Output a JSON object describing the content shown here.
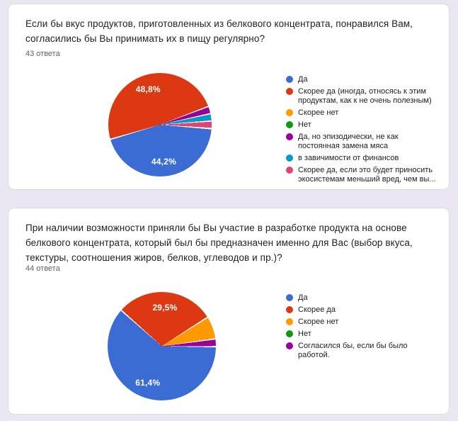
{
  "page": {
    "background_color": "#EAE6F2",
    "card_color": "#FFFFFF"
  },
  "cards": [
    {
      "question": "Если бы вкус продуктов, приготовленных из белкового концентрата, понравился Вам,\nсогласились бы Вы принимать их в пищу регулярно?",
      "answers_count": "43 ответа"
    },
    {
      "question": "При наличии возможности приняли бы Вы участие в разработке продукта на основе\nбелкового концентрата, который был бы предназначен именно для Вас (выбор вкуса,\nтекстуры, соотношения жиров, белков, углеводов и пр.)?",
      "answers_count": "44 ответа"
    }
  ],
  "chart_data": [
    {
      "type": "pie",
      "title": "Если бы вкус продуктов, приготовленных из белкового концентрата, понравился Вам, согласились бы Вы принимать их в пищу регулярно?",
      "responses": 43,
      "legend_position": "right",
      "labels": "percent-inside",
      "start_angle_deg": 94.5,
      "slices": [
        {
          "label": "Да",
          "percent": 44.2,
          "value_label": "44,2%",
          "color": "#3B6CD3"
        },
        {
          "label": "Скорее да (иногда, относясь к этим\nпродуктам, как к не очень полезным)",
          "percent": 48.8,
          "value_label": "48,8%",
          "color": "#DC3912"
        },
        {
          "label": "Скорее нет",
          "percent": 0,
          "color": "#FF9900"
        },
        {
          "label": "Нет",
          "percent": 0,
          "color": "#109618"
        },
        {
          "label": "Да, но эпизодически, не как\nпостоянная замена мяса",
          "percent": 2.3,
          "color": "#990099"
        },
        {
          "label": "в завичимости от финансов",
          "percent": 2.3,
          "color": "#0999C6"
        },
        {
          "label": "Скорее да, если это будет приносить\nэкосистемам меньший вред, чем вы...",
          "percent": 2.3,
          "color": "#DD4477"
        }
      ]
    },
    {
      "type": "pie",
      "title": "При наличии возможности приняли бы Вы участие в разработке продукта на основе белкового концентрата, который был бы предназначен именно для Вас (выбор вкуса, текстуры, соотношения жиров, белков, углеводов и пр.)?",
      "responses": 44,
      "legend_position": "right",
      "labels": "percent-inside",
      "start_angle_deg": 90.5,
      "slices": [
        {
          "label": "Да",
          "percent": 61.4,
          "value_label": "61,4%",
          "color": "#3B6CD3"
        },
        {
          "label": "Скорее да",
          "percent": 29.5,
          "value_label": "29,5%",
          "color": "#DC3912"
        },
        {
          "label": "Скорее нет",
          "percent": 6.8,
          "color": "#FF9900"
        },
        {
          "label": "Нет",
          "percent": 0,
          "color": "#109618"
        },
        {
          "label": "Согласился бы, если бы было\nработой.",
          "percent": 2.3,
          "color": "#990099"
        }
      ]
    }
  ]
}
